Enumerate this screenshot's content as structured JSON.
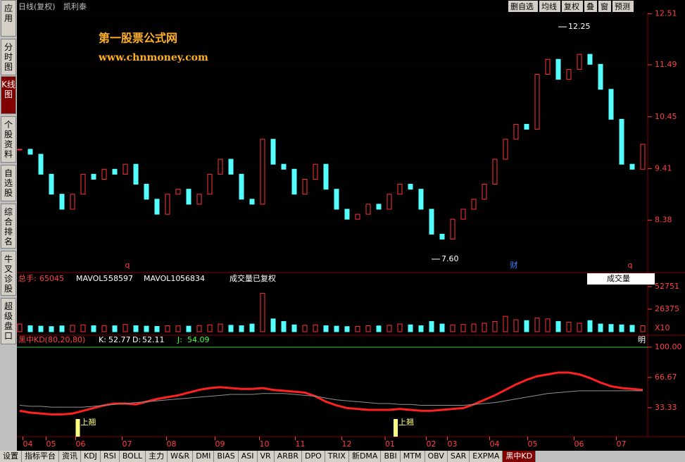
{
  "toolbar": {
    "title": "日线(复权)",
    "stock": "凯利泰",
    "buttons": [
      "删自选",
      "均线",
      "复权",
      "叠",
      "窗",
      "预测"
    ]
  },
  "sidebar": [
    "应用",
    "分时图",
    "K线图",
    "个股资料",
    "自选股",
    "综合排名",
    "牛叉诊股",
    "超级盘口"
  ],
  "watermark": {
    "name": "第一股票公式网",
    "url": "www.chnmoney.com"
  },
  "price": {
    "type": "candle",
    "ylim": [
      7.36,
      12.59
    ],
    "yticks": [
      12.51,
      11.49,
      10.45,
      9.41,
      8.38
    ],
    "closes": [
      9.8,
      9.7,
      9.3,
      8.9,
      8.6,
      8.9,
      9.3,
      9.2,
      9.4,
      9.3,
      9.5,
      9.1,
      8.8,
      8.5,
      8.9,
      9.0,
      8.7,
      8.9,
      9.3,
      9.6,
      9.3,
      8.8,
      8.7,
      10.0,
      9.5,
      9.4,
      8.9,
      9.2,
      9.5,
      9.0,
      8.6,
      8.4,
      8.5,
      8.7,
      8.6,
      8.9,
      9.1,
      9.0,
      8.6,
      8.1,
      8.0,
      8.4,
      8.6,
      8.8,
      9.1,
      9.6,
      10.0,
      10.3,
      10.2,
      11.3,
      11.6,
      11.2,
      11.4,
      11.7,
      11.5,
      11.0,
      10.4,
      9.5,
      9.4,
      9.9
    ],
    "high": {
      "value": 12.25,
      "x": 51
    },
    "low": {
      "value": 7.6,
      "label": "7.60",
      "x": 39
    },
    "markers": [
      {
        "label": "q",
        "x": 10.2
      },
      {
        "label": "财",
        "x": 46.8
      },
      {
        "label": "q",
        "x": 57.8
      }
    ]
  },
  "volume": {
    "type": "bar",
    "total_label": "总手:",
    "total": 65045,
    "mavol5_label": "MAVOL5:",
    "mavol5": 58597,
    "mavol10_label": "MAVOL10:",
    "mavol10": 56834,
    "note": "成交量已复权",
    "selector": "成交量",
    "unit": "X10",
    "ylim": [
      0,
      65100
    ],
    "yticks": [
      52751,
      26375
    ],
    "values": [
      9000,
      7000,
      6500,
      6000,
      6800,
      7500,
      8000,
      7000,
      7200,
      6900,
      8500,
      7000,
      6500,
      6200,
      7000,
      6800,
      6500,
      7200,
      8000,
      9000,
      7500,
      7000,
      9000,
      45000,
      15000,
      12000,
      8000,
      7500,
      8000,
      7000,
      6500,
      6000,
      6200,
      7000,
      6800,
      7500,
      9000,
      8000,
      7000,
      12000,
      9000,
      8000,
      8500,
      9000,
      10000,
      12000,
      18000,
      14000,
      13000,
      16000,
      15000,
      12000,
      11000,
      10000,
      13000,
      9000,
      8500,
      8000,
      7500,
      7000
    ]
  },
  "kd": {
    "type": "line",
    "name": "黑中KD(80,20,80)",
    "k_label": "K:",
    "k": 52.77,
    "d_label": "D:",
    "d": 52.11,
    "j_label": "J:",
    "j": 54.09,
    "corner": "明",
    "ylim": [
      0,
      110
    ],
    "yticks": [
      {
        "value": 100,
        "label": "100.00"
      },
      66.67,
      33.33
    ],
    "signals": [
      {
        "label": "上翘",
        "x": 5.5
      },
      {
        "label": "上翘",
        "x": 35.6
      }
    ],
    "series": [
      {
        "name": "K",
        "color": "#ff2020",
        "values": [
          30,
          28,
          27,
          26,
          26,
          27,
          30,
          33,
          36,
          38,
          38,
          37,
          40,
          43,
          45,
          47,
          50,
          53,
          55,
          56,
          55,
          54,
          54,
          55,
          53,
          52,
          51,
          50,
          46,
          40,
          36,
          33,
          32,
          31,
          31,
          31,
          32,
          31,
          30,
          30,
          31,
          32,
          33,
          37,
          42,
          47,
          53,
          59,
          64,
          68,
          70,
          72,
          72,
          70,
          66,
          61,
          57,
          55,
          54,
          53
        ]
      },
      {
        "name": "D",
        "color": "#909090",
        "values": [
          36,
          35,
          35,
          34,
          34,
          34,
          34,
          35,
          36,
          37,
          38,
          39,
          40,
          41,
          42,
          43,
          44,
          45,
          46,
          47,
          48,
          48,
          48,
          49,
          49,
          49,
          48,
          47,
          46,
          44,
          42,
          41,
          40,
          39,
          38,
          38,
          37,
          37,
          36,
          36,
          36,
          36,
          36,
          37,
          38,
          39,
          41,
          43,
          45,
          47,
          49,
          50,
          51,
          52,
          52,
          52,
          52,
          52,
          52,
          52
        ]
      }
    ]
  },
  "xaxis": {
    "ticks": [
      {
        "value": 0.3,
        "label": "04"
      },
      {
        "value": 2.5,
        "label": "05"
      },
      {
        "value": 5.3,
        "label": "06"
      },
      {
        "value": 9.7,
        "label": "07"
      },
      {
        "value": 13.9,
        "label": "08"
      },
      {
        "value": 18.5,
        "label": "09"
      },
      {
        "value": 22.7,
        "label": "10"
      },
      {
        "value": 26.1,
        "label": "11"
      },
      {
        "value": 30.5,
        "label": "12"
      },
      {
        "value": 34.6,
        "label": "01"
      },
      {
        "value": 38.5,
        "label": "02"
      },
      {
        "value": 40.5,
        "label": "03"
      },
      {
        "value": 44.5,
        "label": "04"
      },
      {
        "value": 48.1,
        "label": "05"
      },
      {
        "value": 52.5,
        "label": "06"
      },
      {
        "value": 56.5,
        "label": "07"
      }
    ]
  },
  "tabs": [
    "设置",
    "指标平台",
    "资讯",
    "KDJ",
    "RSI",
    "BOLL",
    "主力",
    "W&R",
    "DMI",
    "BIAS",
    "ASI",
    "VR",
    "ARBR",
    "DPO",
    "TRIX",
    "新DMA",
    "BBI",
    "MTM",
    "OBV",
    "SAR",
    "EXPMA",
    "黑中KD"
  ]
}
